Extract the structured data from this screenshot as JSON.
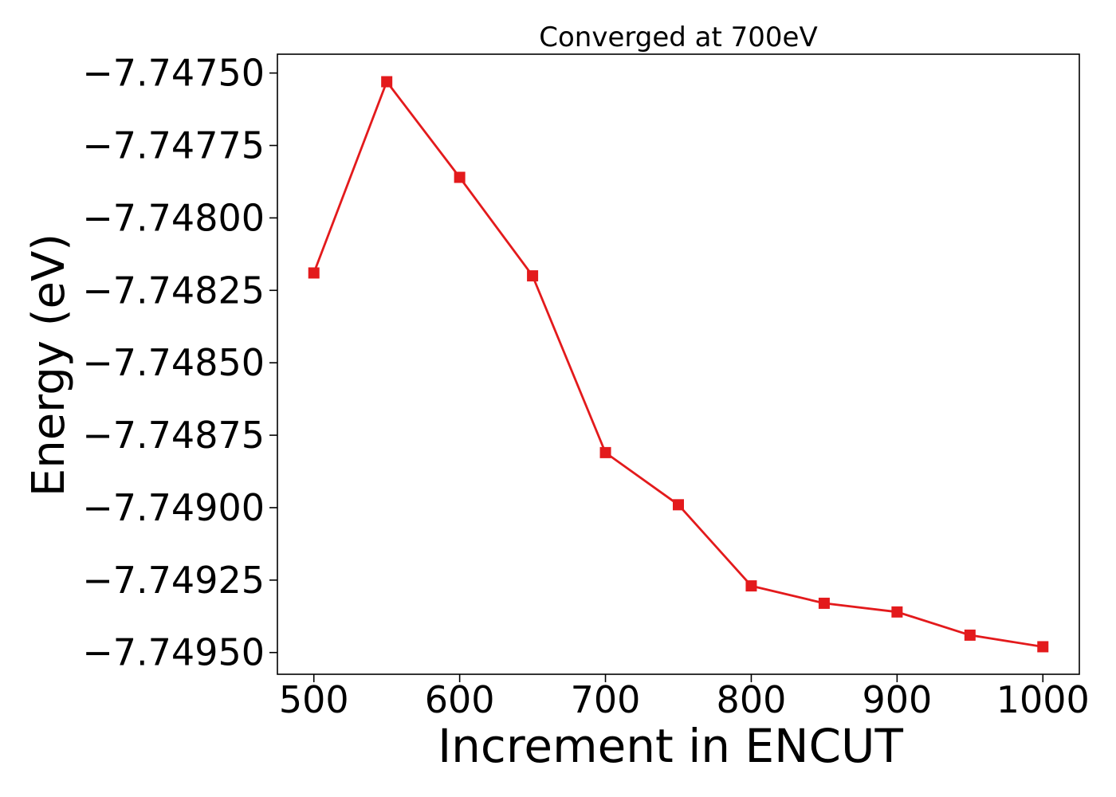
{
  "chart_data": {
    "type": "line",
    "title": "Converged at 700eV",
    "xlabel": "Increment in ENCUT",
    "ylabel": "Energy (eV)",
    "xlim": [
      475,
      1025
    ],
    "ylim": [
      -7.749575,
      -7.747435
    ],
    "xticks": [
      500,
      600,
      700,
      800,
      900,
      1000
    ],
    "xtick_labels": [
      "500",
      "600",
      "700",
      "800",
      "900",
      "1000"
    ],
    "yticks": [
      -7.7475,
      -7.74775,
      -7.748,
      -7.74825,
      -7.7485,
      -7.74875,
      -7.749,
      -7.74925,
      -7.7495
    ],
    "ytick_labels": [
      "−7.74750",
      "−7.74775",
      "−7.74800",
      "−7.74825",
      "−7.74850",
      "−7.74875",
      "−7.74900",
      "−7.74925",
      "−7.74950"
    ],
    "grid": false,
    "series": [
      {
        "color": "#e31a1c",
        "marker": "square",
        "x": [
          500,
          550,
          600,
          650,
          700,
          750,
          800,
          850,
          900,
          950,
          1000
        ],
        "y": [
          -7.74819,
          -7.74753,
          -7.74786,
          -7.7482,
          -7.74881,
          -7.74899,
          -7.74927,
          -7.74933,
          -7.74936,
          -7.74944,
          -7.74948
        ]
      }
    ]
  }
}
